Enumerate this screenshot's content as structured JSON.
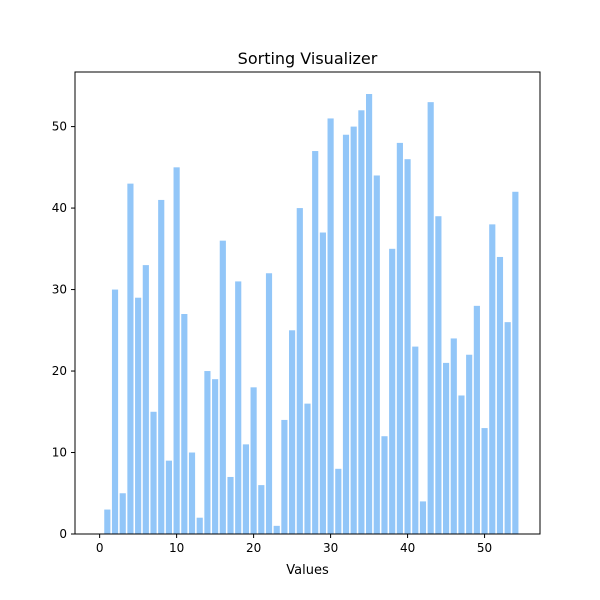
{
  "chart_data": {
    "type": "bar",
    "title": "Sorting Visualizer",
    "xlabel": "Values",
    "ylabel": "",
    "x": [
      1,
      2,
      3,
      4,
      5,
      6,
      7,
      8,
      9,
      10,
      11,
      12,
      13,
      14,
      15,
      16,
      17,
      18,
      19,
      20,
      21,
      22,
      23,
      24,
      25,
      26,
      27,
      28,
      29,
      30,
      31,
      32,
      33,
      34,
      35,
      36,
      37,
      38,
      39,
      40,
      41,
      42,
      43,
      44,
      45,
      46,
      47,
      48,
      49,
      50,
      51,
      52,
      53,
      54
    ],
    "values": [
      3,
      30,
      5,
      43,
      29,
      33,
      15,
      41,
      9,
      45,
      27,
      10,
      2,
      20,
      19,
      36,
      7,
      31,
      11,
      18,
      6,
      32,
      1,
      14,
      25,
      40,
      16,
      47,
      37,
      51,
      8,
      49,
      50,
      52,
      54,
      44,
      12,
      35,
      48,
      46,
      23,
      4,
      53,
      39,
      21,
      24,
      17,
      22,
      28,
      13,
      38,
      34,
      26,
      42
    ],
    "xlim": [
      -3.2,
      57.2
    ],
    "ylim": [
      0,
      56.7
    ],
    "xticks": [
      0,
      10,
      20,
      30,
      40,
      50
    ],
    "yticks": [
      0,
      10,
      20,
      30,
      40,
      50
    ],
    "grid": false,
    "bar_color": "#92c6f8"
  }
}
